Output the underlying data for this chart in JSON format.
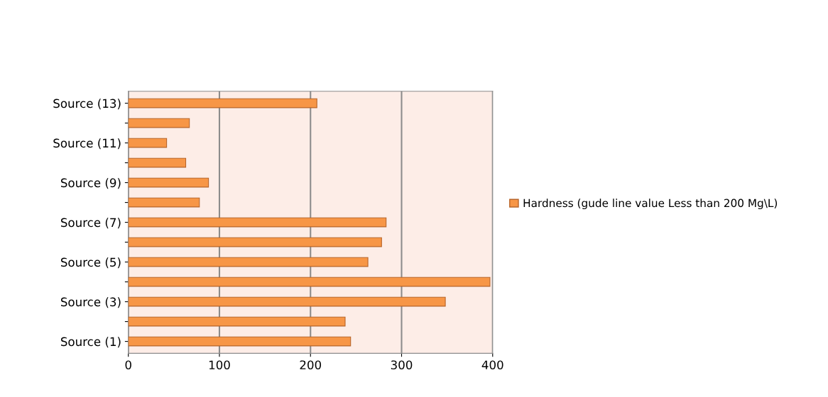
{
  "chart_data": {
    "type": "bar",
    "orientation": "horizontal",
    "categories": [
      "Source (13)",
      null,
      "Source (11)",
      null,
      "Source (9)",
      null,
      "Source (7)",
      null,
      "Source (5)",
      null,
      "Source (3)",
      null,
      "Source (1)"
    ],
    "series": [
      {
        "name": "Hardness (gude line value Less than 200 Mg\\L)",
        "color": "#f79646",
        "values": [
          207,
          67,
          42,
          63,
          88,
          78,
          283,
          278,
          263,
          397,
          348,
          238,
          244
        ]
      }
    ],
    "xlim": [
      0,
      400
    ],
    "xticks": [
      0,
      100,
      200,
      300,
      400
    ],
    "grid": "x",
    "legend": "right"
  }
}
